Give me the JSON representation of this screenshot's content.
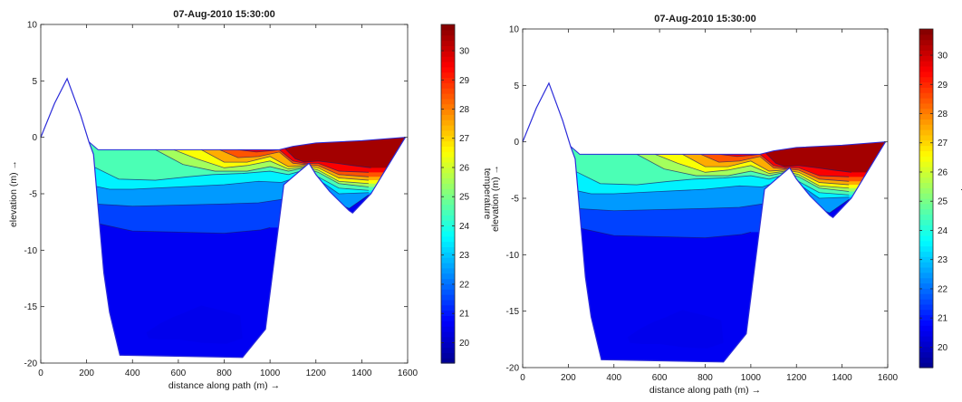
{
  "chart_data": [
    {
      "type": "filled-contour",
      "title": "07-Aug-2010 15:30:00",
      "xlabel": "distance along path (m) →",
      "ylabel": "elevation (m) →",
      "xlim": [
        0,
        1600
      ],
      "ylim": [
        -20,
        10
      ],
      "xticks": [
        "0",
        "200",
        "400",
        "600",
        "800",
        "1000",
        "1200",
        "1400",
        "1600"
      ],
      "yticks": [
        "-20",
        "-15",
        "-10",
        "-5",
        "0",
        "5",
        "10"
      ],
      "colorbar": {
        "label": "temperature",
        "range": [
          19.3,
          30.9
        ],
        "ticks": [
          "20",
          "21",
          "22",
          "23",
          "24",
          "25",
          "26",
          "27",
          "28",
          "29",
          "30"
        ]
      },
      "bed_profile": [
        [
          0,
          0
        ],
        [
          60,
          3
        ],
        [
          115,
          5.2
        ],
        [
          175,
          1.9
        ],
        [
          210,
          -0.4
        ],
        [
          230,
          -1.5
        ],
        [
          275,
          -12
        ],
        [
          300,
          -15.5
        ],
        [
          345,
          -19.3
        ],
        [
          880,
          -19.5
        ],
        [
          980,
          -17
        ],
        [
          1060,
          -4.2
        ],
        [
          1100,
          -3.5
        ],
        [
          1170,
          -2.3
        ],
        [
          1200,
          -3.3
        ],
        [
          1260,
          -4.8
        ],
        [
          1345,
          -6.5
        ],
        [
          1360,
          -6.7
        ],
        [
          1440,
          -5
        ],
        [
          1590,
          0
        ]
      ],
      "bands": [
        {
          "t": 21,
          "pts": [
            [
              240,
              -7.6
            ],
            [
              400,
              -8.3
            ],
            [
              600,
              -8.4
            ],
            [
              800,
              -8.5
            ],
            [
              960,
              -8.2
            ],
            [
              1000,
              -8.0
            ]
          ]
        },
        {
          "t": 22,
          "pts": [
            [
              233,
              -5.9
            ],
            [
              400,
              -6.1
            ],
            [
              600,
              -6.0
            ],
            [
              800,
              -5.9
            ],
            [
              950,
              -5.8
            ],
            [
              1050,
              -5.5
            ],
            [
              1150,
              -3.9
            ],
            [
              1220,
              -4.2
            ],
            [
              1300,
              -5.9
            ],
            [
              1345,
              -6.3
            ],
            [
              1430,
              -5.1
            ]
          ]
        },
        {
          "t": 23,
          "pts": [
            [
              230,
              -4.3
            ],
            [
              300,
              -4.6
            ],
            [
              400,
              -4.6
            ],
            [
              500,
              -4.5
            ],
            [
              600,
              -4.4
            ],
            [
              800,
              -4.2
            ],
            [
              950,
              -3.9
            ],
            [
              1050,
              -4.0
            ],
            [
              1150,
              -3.3
            ],
            [
              1200,
              -3.6
            ],
            [
              1300,
              -5.0
            ],
            [
              1430,
              -4.9
            ]
          ]
        },
        {
          "t": 24,
          "pts": [
            [
              230,
              -2.6
            ],
            [
              340,
              -3.7
            ],
            [
              500,
              -3.8
            ],
            [
              640,
              -3.5
            ],
            [
              750,
              -3.3
            ],
            [
              880,
              -3.2
            ],
            [
              1000,
              -3.0
            ],
            [
              1080,
              -3.3
            ],
            [
              1150,
              -2.9
            ],
            [
              1200,
              -3.4
            ],
            [
              1300,
              -4.5
            ],
            [
              1430,
              -4.7
            ]
          ]
        },
        {
          "t": 25,
          "pts": [
            [
              500,
              -1.1
            ],
            [
              620,
              -2.4
            ],
            [
              760,
              -3.0
            ],
            [
              900,
              -3.0
            ],
            [
              1000,
              -2.6
            ],
            [
              1080,
              -3.0
            ],
            [
              1150,
              -2.7
            ],
            [
              1210,
              -3.1
            ],
            [
              1300,
              -4.1
            ],
            [
              1430,
              -4.4
            ]
          ]
        },
        {
          "t": 26,
          "pts": [
            [
              580,
              -1.1
            ],
            [
              680,
              -1.9
            ],
            [
              800,
              -2.7
            ],
            [
              900,
              -2.5
            ],
            [
              1000,
              -2.1
            ],
            [
              1080,
              -2.8
            ],
            [
              1150,
              -2.6
            ],
            [
              1210,
              -2.9
            ],
            [
              1300,
              -3.9
            ],
            [
              1430,
              -4.1
            ]
          ]
        },
        {
          "t": 27,
          "pts": [
            [
              700,
              -1.1
            ],
            [
              800,
              -2.2
            ],
            [
              900,
              -2.2
            ],
            [
              1000,
              -1.7
            ],
            [
              1080,
              -2.6
            ],
            [
              1150,
              -2.5
            ],
            [
              1210,
              -2.7
            ],
            [
              1300,
              -3.6
            ],
            [
              1430,
              -3.8
            ]
          ]
        },
        {
          "t": 28,
          "pts": [
            [
              780,
              -1.1
            ],
            [
              860,
              -1.8
            ],
            [
              950,
              -1.7
            ],
            [
              1040,
              -1.3
            ],
            [
              1100,
              -2.3
            ],
            [
              1150,
              -2.4
            ],
            [
              1210,
              -2.5
            ],
            [
              1300,
              -3.3
            ],
            [
              1430,
              -3.5
            ]
          ]
        },
        {
          "t": 29,
          "pts": [
            [
              860,
              -1.1
            ],
            [
              940,
              -1.3
            ],
            [
              1000,
              -1.2
            ],
            [
              1040,
              -1.1
            ],
            [
              1100,
              -2.1
            ],
            [
              1150,
              -2.3
            ],
            [
              1210,
              -2.3
            ],
            [
              1300,
              -3.0
            ],
            [
              1430,
              -3.1
            ]
          ]
        },
        {
          "t": 30,
          "pts": [
            [
              1040,
              -1.1
            ],
            [
              1060,
              -0.9
            ],
            [
              1110,
              -1.9
            ],
            [
              1150,
              -2.2
            ],
            [
              1210,
              -2.1
            ],
            [
              1290,
              -2.3
            ],
            [
              1360,
              -2.5
            ],
            [
              1440,
              -2.7
            ]
          ]
        }
      ],
      "dark_pocket": [
        [
          460,
          -17.3
        ],
        [
          520,
          -16.5
        ],
        [
          580,
          -15.9
        ],
        [
          620,
          -15.6
        ],
        [
          700,
          -14.9
        ],
        [
          800,
          -15.4
        ],
        [
          870,
          -15.8
        ],
        [
          880,
          -17.8
        ],
        [
          810,
          -18.3
        ],
        [
          700,
          -18.2
        ],
        [
          600,
          -17.9
        ],
        [
          520,
          -17.9
        ],
        [
          470,
          -17.8
        ]
      ],
      "surface_profile": [
        [
          210,
          -0.4
        ],
        [
          250,
          -1.1
        ],
        [
          1040,
          -1.1
        ],
        [
          1100,
          -0.8
        ],
        [
          1200,
          -0.5
        ],
        [
          1400,
          -0.3
        ],
        [
          1590,
          0
        ]
      ]
    },
    {
      "type": "filled-contour",
      "title": "07-Aug-2010 15:30:00",
      "xlabel": "distance along path (m) →",
      "ylabel": "elevation (m) →",
      "xlim": [
        0,
        1600
      ],
      "ylim": [
        -20,
        10
      ],
      "xticks": [
        "0",
        "200",
        "400",
        "600",
        "800",
        "1000",
        "1200",
        "1400",
        "1600"
      ],
      "yticks": [
        "-20",
        "-15",
        "-10",
        "-5",
        "0",
        "5",
        "10"
      ],
      "colorbar": {
        "label": "temperature",
        "range": [
          19.3,
          30.9
        ],
        "ticks": [
          "20",
          "21",
          "22",
          "23",
          "24",
          "25",
          "26",
          "27",
          "28",
          "29",
          "30"
        ]
      },
      "same_as": 0
    }
  ],
  "colors": {
    "jet": [
      "#00008f",
      "#0000ff",
      "#0080ff",
      "#00ffff",
      "#80ff80",
      "#ffff00",
      "#ff8000",
      "#ff0000",
      "#800000"
    ],
    "outline": "#2b2bd9",
    "contour_line": "#1a1a66"
  }
}
